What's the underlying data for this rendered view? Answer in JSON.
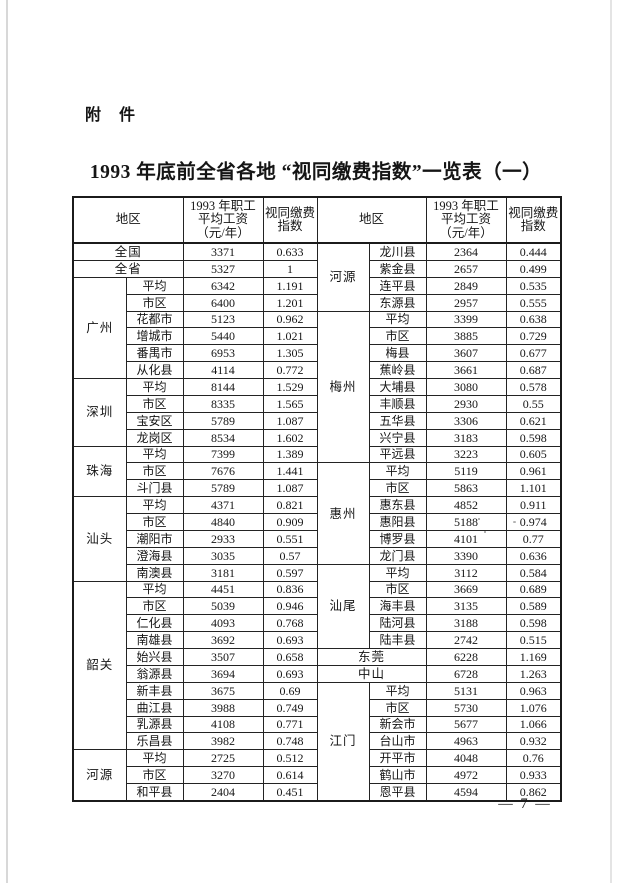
{
  "page": {
    "attachment_label": "附　件",
    "title": "1993 年底前全省各地 “视同缴费指数”一览表（一）",
    "page_number": "— 7 —"
  },
  "table": {
    "header": {
      "region_label": "地区",
      "wage_label_lines": [
        "1993 年职工",
        "平均工资",
        "（元/年）"
      ],
      "index_label_lines": [
        "视同缴费",
        "指数"
      ]
    },
    "left_groups": [
      {
        "region": null,
        "rows": [
          {
            "area": "全国",
            "wage": "3371",
            "index": "0.633"
          }
        ]
      },
      {
        "region": null,
        "rows": [
          {
            "area": "全省",
            "wage": "5327",
            "index": "1"
          }
        ]
      },
      {
        "region": "广州",
        "rows": [
          {
            "area": "平均",
            "wage": "6342",
            "index": "1.191"
          },
          {
            "area": "市区",
            "wage": "6400",
            "index": "1.201"
          },
          {
            "area": "花都市",
            "wage": "5123",
            "index": "0.962"
          },
          {
            "area": "增城市",
            "wage": "5440",
            "index": "1.021"
          },
          {
            "area": "番禺市",
            "wage": "6953",
            "index": "1.305"
          },
          {
            "area": "从化县",
            "wage": "4114",
            "index": "0.772"
          }
        ]
      },
      {
        "region": "深圳",
        "rows": [
          {
            "area": "平均",
            "wage": "8144",
            "index": "1.529"
          },
          {
            "area": "市区",
            "wage": "8335",
            "index": "1.565"
          },
          {
            "area": "宝安区",
            "wage": "5789",
            "index": "1.087"
          },
          {
            "area": "龙岗区",
            "wage": "8534",
            "index": "1.602"
          }
        ]
      },
      {
        "region": "珠海",
        "rows": [
          {
            "area": "平均",
            "wage": "7399",
            "index": "1.389"
          },
          {
            "area": "市区",
            "wage": "7676",
            "index": "1.441"
          },
          {
            "area": "斗门县",
            "wage": "5789",
            "index": "1.087"
          }
        ]
      },
      {
        "region": "汕头",
        "rows": [
          {
            "area": "平均",
            "wage": "4371",
            "index": "0.821"
          },
          {
            "area": "市区",
            "wage": "4840",
            "index": "0.909"
          },
          {
            "area": "潮阳市",
            "wage": "2933",
            "index": "0.551"
          },
          {
            "area": "澄海县",
            "wage": "3035",
            "index": "0.57"
          },
          {
            "area": "南澳县",
            "wage": "3181",
            "index": "0.597"
          }
        ]
      },
      {
        "region": "韶关",
        "rows": [
          {
            "area": "平均",
            "wage": "4451",
            "index": "0.836"
          },
          {
            "area": "市区",
            "wage": "5039",
            "index": "0.946"
          },
          {
            "area": "仁化县",
            "wage": "4093",
            "index": "0.768"
          },
          {
            "area": "南雄县",
            "wage": "3692",
            "index": "0.693"
          },
          {
            "area": "始兴县",
            "wage": "3507",
            "index": "0.658"
          },
          {
            "area": "翁源县",
            "wage": "3694",
            "index": "0.693"
          },
          {
            "area": "新丰县",
            "wage": "3675",
            "index": "0.69"
          },
          {
            "area": "曲江县",
            "wage": "3988",
            "index": "0.749"
          },
          {
            "area": "乳源县",
            "wage": "4108",
            "index": "0.771"
          },
          {
            "area": "乐昌县",
            "wage": "3982",
            "index": "0.748"
          }
        ]
      },
      {
        "region": "河源",
        "rows": [
          {
            "area": "平均",
            "wage": "2725",
            "index": "0.512"
          },
          {
            "area": "市区",
            "wage": "3270",
            "index": "0.614"
          },
          {
            "area": "和平县",
            "wage": "2404",
            "index": "0.451"
          }
        ]
      }
    ],
    "right_groups": [
      {
        "region": "河源",
        "rows": [
          {
            "area": "龙川县",
            "wage": "2364",
            "index": "0.444"
          },
          {
            "area": "紫金县",
            "wage": "2657",
            "index": "0.499"
          },
          {
            "area": "连平县",
            "wage": "2849",
            "index": "0.535"
          },
          {
            "area": "东源县",
            "wage": "2957",
            "index": "0.555"
          }
        ]
      },
      {
        "region": "梅州",
        "rows": [
          {
            "area": "平均",
            "wage": "3399",
            "index": "0.638"
          },
          {
            "area": "市区",
            "wage": "3885",
            "index": "0.729"
          },
          {
            "area": "梅县",
            "wage": "3607",
            "index": "0.677"
          },
          {
            "area": "蕉岭县",
            "wage": "3661",
            "index": "0.687"
          },
          {
            "area": "大埔县",
            "wage": "3080",
            "index": "0.578"
          },
          {
            "area": "丰顺县",
            "wage": "2930",
            "index": "0.55"
          },
          {
            "area": "五华县",
            "wage": "3306",
            "index": "0.621"
          },
          {
            "area": "兴宁县",
            "wage": "3183",
            "index": "0.598"
          },
          {
            "area": "平远县",
            "wage": "3223",
            "index": "0.605"
          }
        ]
      },
      {
        "region": "惠州",
        "rows": [
          {
            "area": "平均",
            "wage": "5119",
            "index": "0.961"
          },
          {
            "area": "市区",
            "wage": "5863",
            "index": "1.101"
          },
          {
            "area": "惠东县",
            "wage": "4852",
            "index": "0.911"
          },
          {
            "area": "惠阳县",
            "wage": "5188",
            "index": "0.974"
          },
          {
            "area": "博罗县",
            "wage": "4101",
            "index": "0.77"
          },
          {
            "area": "龙门县",
            "wage": "3390",
            "index": "0.636"
          }
        ]
      },
      {
        "region": "汕尾",
        "rows": [
          {
            "area": "平均",
            "wage": "3112",
            "index": "0.584"
          },
          {
            "area": "市区",
            "wage": "3669",
            "index": "0.689"
          },
          {
            "area": "海丰县",
            "wage": "3135",
            "index": "0.589"
          },
          {
            "area": "陆河县",
            "wage": "3188",
            "index": "0.598"
          },
          {
            "area": "陆丰县",
            "wage": "2742",
            "index": "0.515"
          }
        ]
      },
      {
        "region": null,
        "rows": [
          {
            "area": "东莞",
            "wage": "6228",
            "index": "1.169"
          }
        ]
      },
      {
        "region": null,
        "rows": [
          {
            "area": "中山",
            "wage": "6728",
            "index": "1.263"
          }
        ]
      },
      {
        "region": "江门",
        "rows": [
          {
            "area": "平均",
            "wage": "5131",
            "index": "0.963"
          },
          {
            "area": "市区",
            "wage": "5730",
            "index": "1.076"
          },
          {
            "area": "新会市",
            "wage": "5677",
            "index": "1.066"
          },
          {
            "area": "台山市",
            "wage": "4963",
            "index": "0.932"
          },
          {
            "area": "开平市",
            "wage": "4048",
            "index": "0.76"
          },
          {
            "area": "鹤山市",
            "wage": "4972",
            "index": "0.933"
          },
          {
            "area": "恩平县",
            "wage": "4594",
            "index": "0.862"
          }
        ]
      }
    ]
  }
}
